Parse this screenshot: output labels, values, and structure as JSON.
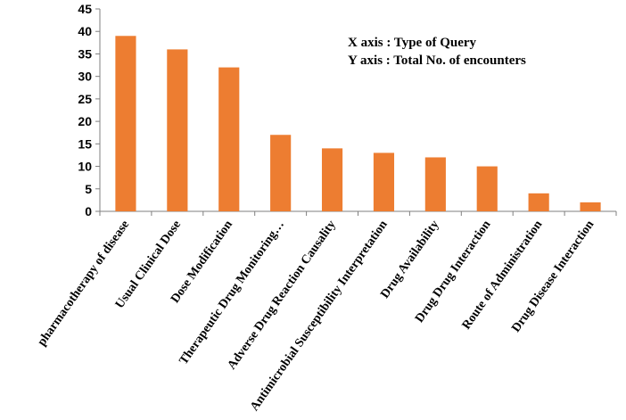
{
  "chart_data": {
    "type": "bar",
    "categories": [
      "pharmacotherapy of disease",
      "Usual Clinical Dose",
      "Dose Modification",
      "Therapeutic Drug Monitoring…",
      "Adverse Drug Reaction Causality",
      "Antimicrobial Susceptibility Interpretation",
      "Drug Availability",
      "Drug Drug Interaction",
      "Route of Administration",
      "Drug Disease Interaction"
    ],
    "values": [
      39,
      36,
      32,
      17,
      14,
      13,
      12,
      10,
      4,
      2
    ],
    "ylim": [
      0,
      45
    ],
    "yticks": [
      0,
      5,
      10,
      15,
      20,
      25,
      30,
      35,
      40,
      45
    ],
    "grid": false,
    "legend": "none",
    "bar_color": "#ED7D31",
    "annotations": [
      "X axis : Type of Query",
      "Y axis : Total No. of encounters"
    ]
  }
}
